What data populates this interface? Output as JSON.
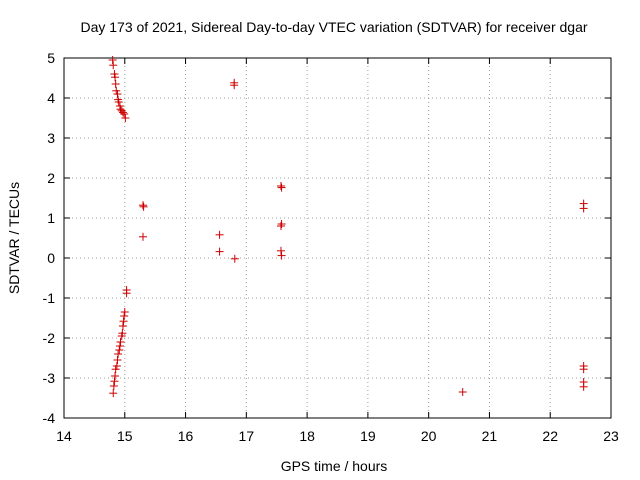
{
  "chart_data": {
    "type": "scatter",
    "title": "Day 173 of 2021, Sidereal Day-to-day VTEC variation (SDTVAR) for receiver dgar",
    "xlabel": "GPS time / hours",
    "ylabel": "SDTVAR / TECUs",
    "xlim": [
      14,
      23
    ],
    "ylim": [
      -4,
      5
    ],
    "xticks": [
      "14",
      "15",
      "16",
      "17",
      "18",
      "19",
      "20",
      "21",
      "22",
      "23"
    ],
    "yticks": [
      "-4",
      "-3",
      "-2",
      "-1",
      "0",
      "1",
      "2",
      "3",
      "4",
      "5"
    ],
    "grid": true,
    "marker": "+",
    "color": "#cc0000",
    "series": [
      {
        "name": "dgar",
        "x": [
          14.8,
          14.81,
          14.83,
          14.84,
          14.85,
          14.86,
          14.88,
          14.89,
          14.9,
          14.92,
          14.93,
          14.95,
          14.97,
          14.99,
          15.01,
          15.3,
          15.31,
          15.3,
          16.56,
          16.8,
          16.8,
          16.56,
          16.81,
          17.57,
          17.58,
          17.58,
          17.57,
          17.57,
          17.58,
          22.55,
          22.55,
          14.81,
          14.82,
          14.83,
          14.84,
          14.85,
          14.87,
          14.88,
          14.89,
          14.91,
          14.92,
          14.93,
          14.95,
          14.96,
          14.97,
          14.98,
          14.99,
          15.0,
          15.03,
          15.03,
          22.55,
          22.55,
          22.55,
          22.55,
          20.56
        ],
        "y": [
          4.95,
          4.82,
          4.6,
          4.52,
          4.35,
          4.18,
          4.1,
          3.96,
          3.9,
          3.8,
          3.72,
          3.68,
          3.64,
          3.6,
          3.5,
          1.32,
          1.28,
          0.53,
          0.58,
          4.38,
          4.32,
          0.16,
          -0.02,
          1.8,
          1.76,
          0.85,
          0.8,
          0.18,
          0.06,
          1.36,
          1.24,
          -3.38,
          -3.2,
          -3.08,
          -2.95,
          -2.78,
          -2.7,
          -2.55,
          -2.4,
          -2.3,
          -2.2,
          -2.1,
          -1.95,
          -1.88,
          -1.7,
          -1.58,
          -1.45,
          -1.35,
          -0.8,
          -0.88,
          -2.7,
          -2.78,
          -3.1,
          -3.22,
          -3.35
        ]
      }
    ]
  }
}
